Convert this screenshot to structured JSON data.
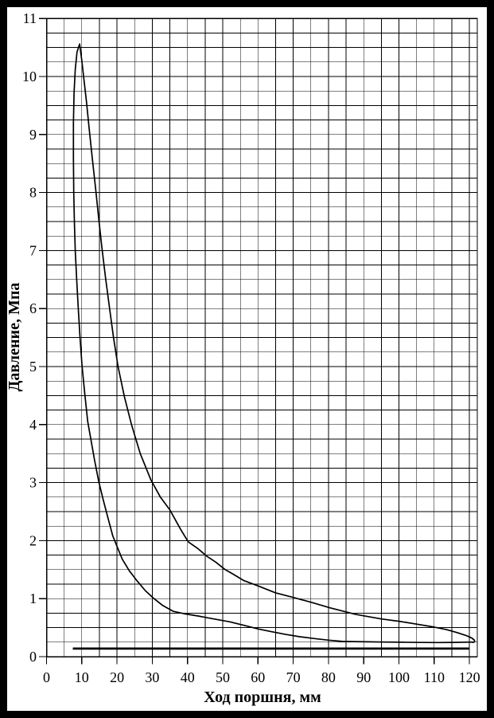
{
  "window": {
    "frame_color": "#000000",
    "background_color": "#ffffff",
    "line_color": "#000000"
  },
  "chart_data": {
    "type": "line",
    "title": "",
    "xlabel": "Ход поршня, мм",
    "ylabel": "Давление, Мпа",
    "xlim": [
      0,
      122.3
    ],
    "ylim": [
      0,
      11
    ],
    "x_ticks": [
      0,
      10,
      20,
      30,
      40,
      50,
      60,
      70,
      80,
      90,
      100,
      110,
      120
    ],
    "y_ticks": [
      0,
      1,
      2,
      3,
      4,
      5,
      6,
      7,
      8,
      9,
      10,
      11
    ],
    "x_minor_step": 5,
    "y_minor_step": 0.25,
    "x_minor_max": 120,
    "grid": true,
    "legend": "none",
    "peak_point": [
      9.4,
      10.56
    ],
    "series": [
      {
        "name": "indicator-cycle-loop",
        "closed": true,
        "points": [
          [
            120.9,
            0.252
          ],
          [
            116,
            0.246
          ],
          [
            111,
            0.243
          ],
          [
            106,
            0.244
          ],
          [
            101,
            0.248
          ],
          [
            96,
            0.252
          ],
          [
            91,
            0.256
          ],
          [
            87,
            0.259
          ],
          [
            84,
            0.263
          ],
          [
            80,
            0.285
          ],
          [
            76,
            0.312
          ],
          [
            72,
            0.342
          ],
          [
            68,
            0.382
          ],
          [
            64,
            0.428
          ],
          [
            60,
            0.478
          ],
          [
            56,
            0.54
          ],
          [
            52,
            0.6
          ],
          [
            47,
            0.655
          ],
          [
            43,
            0.7
          ],
          [
            39,
            0.74
          ],
          [
            36,
            0.78
          ],
          [
            33,
            0.88
          ],
          [
            30.5,
            1.0
          ],
          [
            28,
            1.14
          ],
          [
            25.5,
            1.32
          ],
          [
            23.5,
            1.48
          ],
          [
            21.5,
            1.68
          ],
          [
            20,
            1.9
          ],
          [
            18.8,
            2.08
          ],
          [
            17.6,
            2.35
          ],
          [
            16.1,
            2.7
          ],
          [
            14.8,
            3.02
          ],
          [
            13.6,
            3.4
          ],
          [
            12.6,
            3.74
          ],
          [
            11.7,
            4.05
          ],
          [
            10.9,
            4.5
          ],
          [
            10.1,
            5.0
          ],
          [
            9.5,
            5.5
          ],
          [
            9.0,
            6.0
          ],
          [
            8.55,
            6.5
          ],
          [
            8.15,
            7.0
          ],
          [
            7.9,
            7.5
          ],
          [
            7.72,
            8.0
          ],
          [
            7.62,
            8.6
          ],
          [
            7.62,
            9.2
          ],
          [
            7.8,
            9.72
          ],
          [
            8.15,
            10.12
          ],
          [
            8.65,
            10.42
          ],
          [
            9.4,
            10.56
          ],
          [
            10.0,
            10.28
          ],
          [
            10.6,
            9.95
          ],
          [
            11.3,
            9.58
          ],
          [
            12.1,
            9.1
          ],
          [
            13.0,
            8.58
          ],
          [
            13.9,
            8.08
          ],
          [
            14.9,
            7.5
          ],
          [
            15.7,
            7.05
          ],
          [
            16.7,
            6.55
          ],
          [
            17.8,
            6.04
          ],
          [
            19.0,
            5.5
          ],
          [
            20.3,
            5.0
          ],
          [
            22.1,
            4.48
          ],
          [
            24.1,
            4.0
          ],
          [
            26.6,
            3.5
          ],
          [
            29.6,
            3.05
          ],
          [
            32.3,
            2.75
          ],
          [
            35,
            2.53
          ],
          [
            38,
            2.2
          ],
          [
            40.2,
            1.98
          ],
          [
            43,
            1.86
          ],
          [
            45.5,
            1.73
          ],
          [
            48,
            1.63
          ],
          [
            50.7,
            1.5
          ],
          [
            53,
            1.42
          ],
          [
            56,
            1.31
          ],
          [
            60,
            1.22
          ],
          [
            65,
            1.1
          ],
          [
            70,
            1.02
          ],
          [
            75.5,
            0.93
          ],
          [
            80.5,
            0.84
          ],
          [
            87.7,
            0.73
          ],
          [
            95,
            0.65
          ],
          [
            100,
            0.61
          ],
          [
            105,
            0.56
          ],
          [
            110,
            0.51
          ],
          [
            113.5,
            0.465
          ],
          [
            116.5,
            0.415
          ],
          [
            119,
            0.365
          ],
          [
            120.7,
            0.32
          ],
          [
            121.4,
            0.285
          ],
          [
            121.5,
            0.265
          ],
          [
            121.3,
            0.25
          ],
          [
            121.0,
            0.245
          ]
        ]
      },
      {
        "name": "exhaust-line",
        "closed": false,
        "points": [
          [
            7.6,
            0.148
          ],
          [
            119.8,
            0.148
          ]
        ]
      },
      {
        "name": "atmospheric-line",
        "closed": false,
        "points": [
          [
            7.6,
            0.131
          ],
          [
            119.8,
            0.131
          ]
        ]
      }
    ]
  }
}
